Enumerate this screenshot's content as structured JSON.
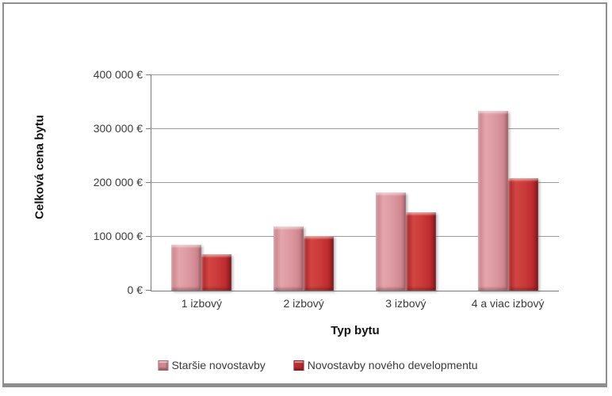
{
  "figure": {
    "background": "#ffffff",
    "border_color": "#8e8e8e",
    "gridline_color": "#9a9a9a",
    "axis_color": "#7a7a7a",
    "text_color": "#3a3a3a"
  },
  "chart_data": {
    "type": "bar",
    "title": "",
    "categories": [
      "1 izbový",
      "2 izbový",
      "3 izbový",
      "4 a viac izbový"
    ],
    "series": [
      {
        "name": "Staršie novostavby",
        "color": "#d9939b",
        "values": [
          85000,
          119000,
          183000,
          334000
        ]
      },
      {
        "name": "Novostavby nového developmentu",
        "color": "#c22f31",
        "values": [
          68000,
          101000,
          145000,
          209000
        ]
      }
    ],
    "xlabel": "Typ bytu",
    "ylabel": "Celková cena bytu",
    "ylim": [
      0,
      400000
    ],
    "ytick_values": [
      0,
      100000,
      200000,
      300000,
      400000
    ],
    "ytick_labels": [
      "0 €",
      "100 000 €",
      "200 000 €",
      "300 000 €",
      "400 000 €"
    ],
    "grid": true,
    "legend_position": "bottom"
  }
}
